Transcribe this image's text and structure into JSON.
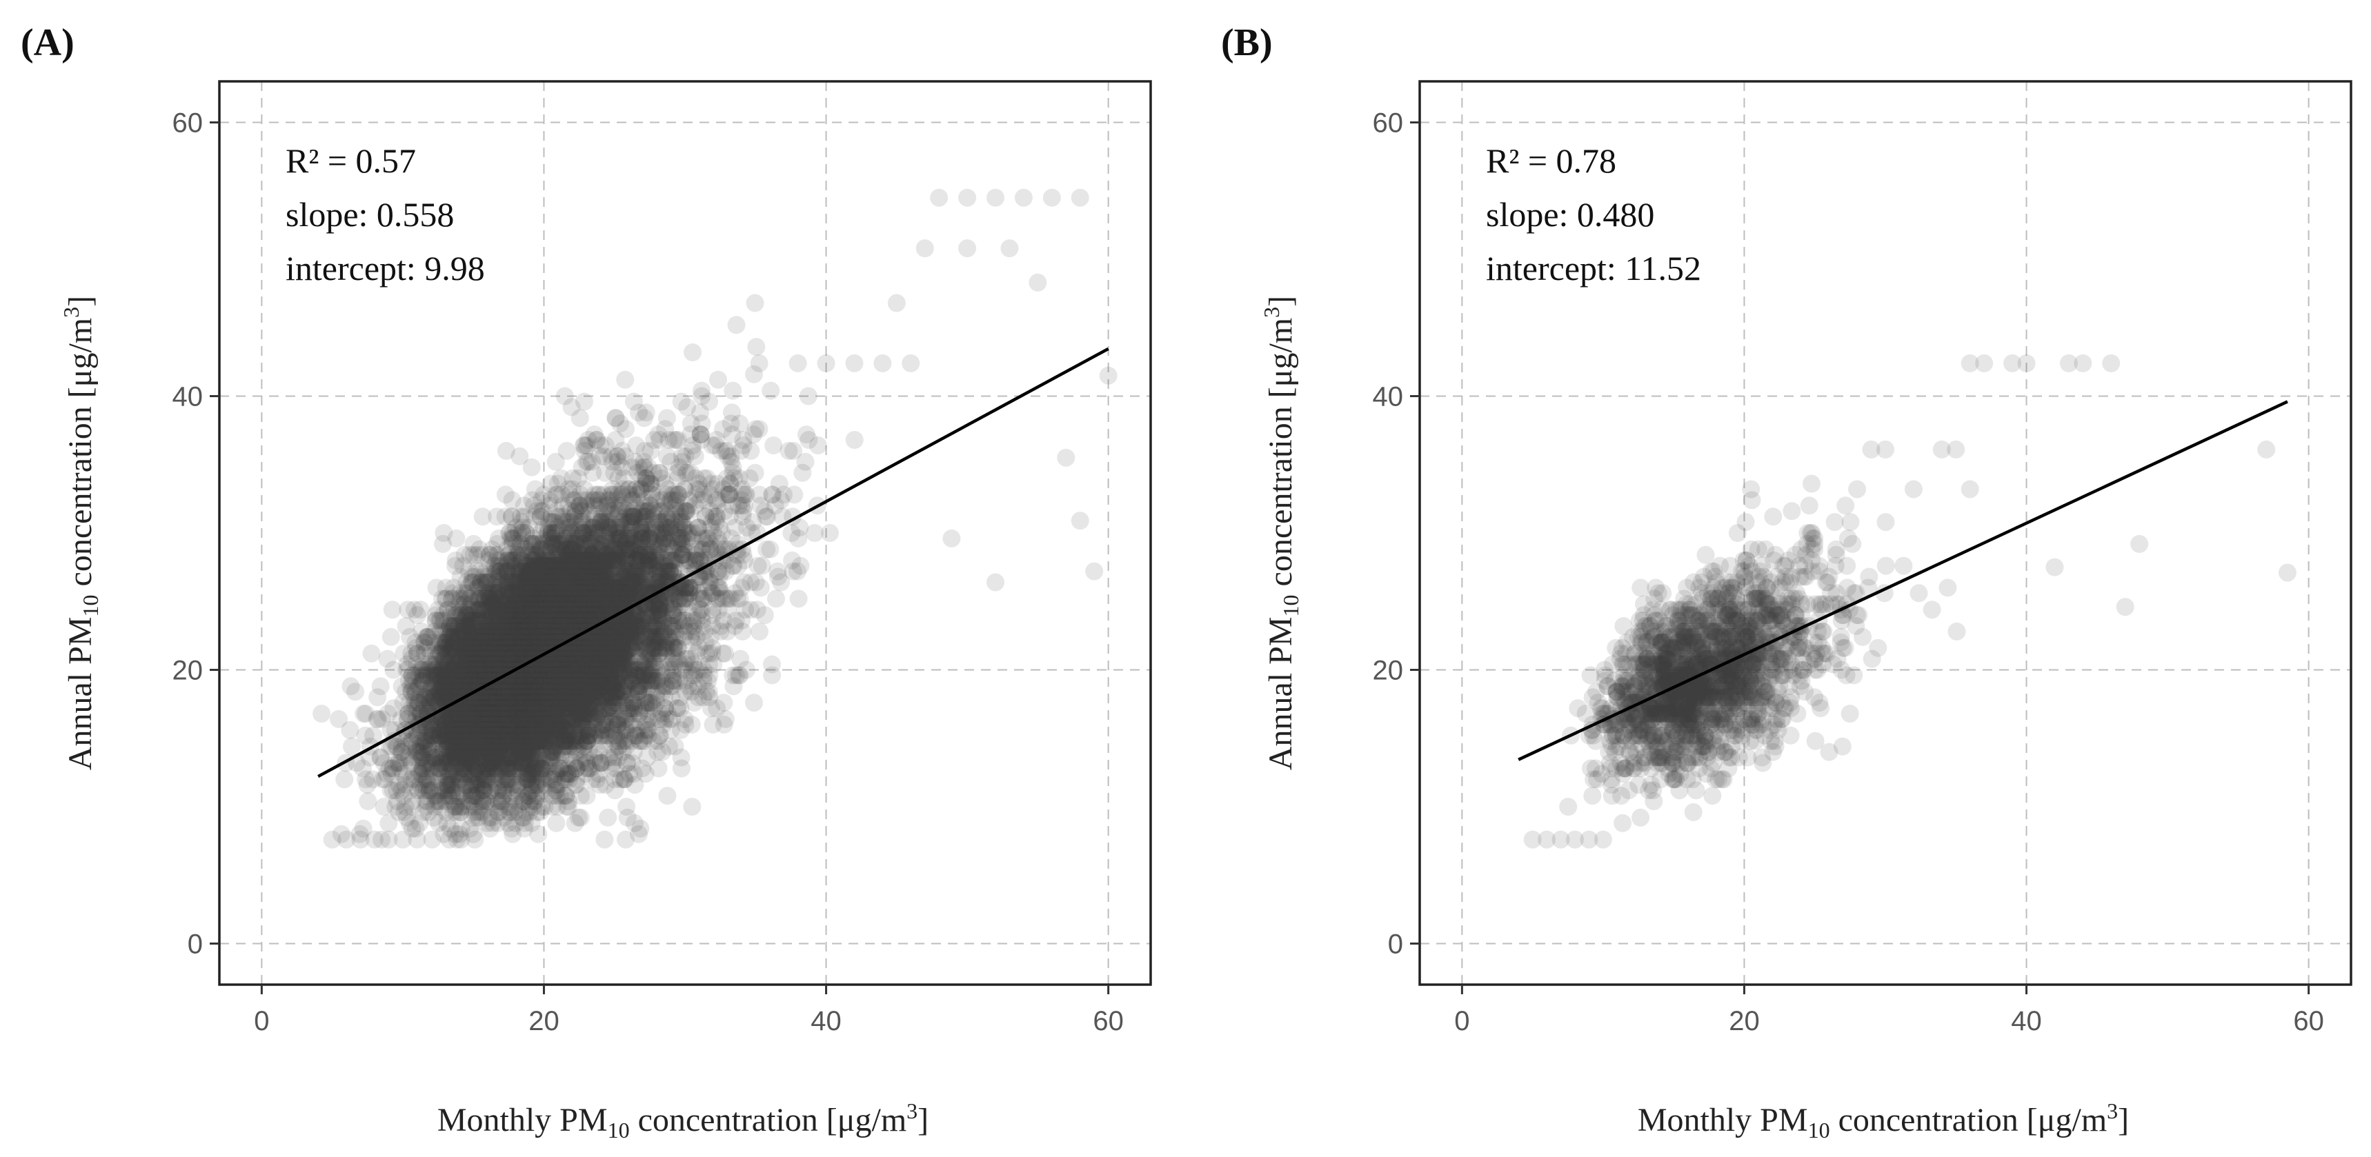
{
  "chart_data": [
    {
      "type": "scatter",
      "panel_label": "(A)",
      "xlabel": {
        "pre": "Monthly PM",
        "sub": "10",
        "post": " concentration [μg/m",
        "sup": "3",
        "end": "]"
      },
      "ylabel": {
        "pre": "Annual PM",
        "sub": "10",
        "post": " concentration [μg/m",
        "sup": "3",
        "end": "]"
      },
      "xlim": [
        -3,
        63
      ],
      "ylim": [
        -3,
        63
      ],
      "xticks": [
        0,
        20,
        40,
        60
      ],
      "yticks": [
        0,
        20,
        40,
        60
      ],
      "grid": true,
      "stats": {
        "r2": "R² = 0.57",
        "slope": "slope: 0.558",
        "intercept": "intercept: 9.98"
      },
      "fit": {
        "slope": 0.558,
        "intercept": 9.98,
        "x_range": [
          4,
          60
        ]
      },
      "cloud": {
        "n": 9000,
        "x_mean": 18,
        "x_sd": 6.5,
        "x_min": 4,
        "x_max": 60,
        "noise_sd": 3.8,
        "y_min": 7.5,
        "y_max": 55,
        "extra": [
          [
            42,
            42.4
          ],
          [
            44,
            42.4
          ],
          [
            46,
            42.4
          ],
          [
            40,
            42.4
          ],
          [
            38,
            42.4
          ],
          [
            48,
            54.5
          ],
          [
            50,
            54.5
          ],
          [
            52,
            54.5
          ],
          [
            54,
            54.5
          ],
          [
            56,
            54.5
          ],
          [
            58,
            54.5
          ],
          [
            47,
            50.8
          ],
          [
            50,
            50.8
          ],
          [
            53,
            50.8
          ],
          [
            45,
            46.8
          ],
          [
            55,
            48.3
          ],
          [
            59,
            27.2
          ],
          [
            60,
            41.5
          ],
          [
            57,
            35.5
          ],
          [
            52,
            26.4
          ],
          [
            58,
            30.9
          ],
          [
            5,
            7.6
          ],
          [
            6,
            7.6
          ],
          [
            7,
            7.6
          ],
          [
            8,
            7.6
          ],
          [
            9,
            7.6
          ],
          [
            10,
            7.6
          ]
        ]
      }
    },
    {
      "type": "scatter",
      "panel_label": "(B)",
      "xlabel": {
        "pre": "Monthly PM",
        "sub": "10",
        "post": " concentration [μg/m",
        "sup": "3",
        "end": "]"
      },
      "ylabel": {
        "pre": "Annual PM",
        "sub": "10",
        "post": " concentration [μg/m",
        "sup": "3",
        "end": "]"
      },
      "xlim": [
        -3,
        63
      ],
      "ylim": [
        -3,
        63
      ],
      "xticks": [
        0,
        20,
        40,
        60
      ],
      "yticks": [
        0,
        20,
        40,
        60
      ],
      "grid": true,
      "stats": {
        "r2": "R² = 0.78",
        "slope": "slope: 0.480",
        "intercept": "intercept: 11.52"
      },
      "fit": {
        "slope": 0.48,
        "intercept": 11.52,
        "x_range": [
          4,
          58.5
        ]
      },
      "cloud": {
        "n": 1800,
        "x_mean": 15.5,
        "x_sd": 5.2,
        "x_min": 5,
        "x_max": 58,
        "noise_sd": 2.9,
        "y_min": 7.5,
        "y_max": 43,
        "extra": [
          [
            36,
            42.4
          ],
          [
            37,
            42.4
          ],
          [
            39,
            42.4
          ],
          [
            40,
            42.4
          ],
          [
            43,
            42.4
          ],
          [
            44,
            42.4
          ],
          [
            46,
            42.4
          ],
          [
            29,
            36.1
          ],
          [
            30,
            36.1
          ],
          [
            34,
            36.1
          ],
          [
            35,
            36.1
          ],
          [
            28,
            33.2
          ],
          [
            32,
            33.2
          ],
          [
            36,
            33.2
          ],
          [
            58.5,
            27.1
          ],
          [
            57,
            36.1
          ],
          [
            48,
            29.2
          ],
          [
            47,
            24.6
          ],
          [
            42,
            27.5
          ],
          [
            5,
            7.6
          ],
          [
            6,
            7.6
          ],
          [
            7,
            7.6
          ],
          [
            8,
            7.6
          ],
          [
            9,
            7.6
          ],
          [
            10,
            7.6
          ]
        ]
      }
    }
  ]
}
